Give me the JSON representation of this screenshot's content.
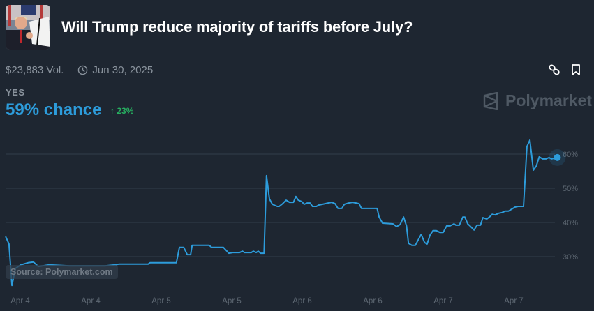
{
  "market": {
    "title": "Will Trump reduce majority of tariffs before July?",
    "thumbnail_icon": "market-photo",
    "volume": "$23,883 Vol.",
    "end_date": "Jun 30, 2025",
    "outcome_label": "YES",
    "chance": "59% chance",
    "change": "23%",
    "change_direction": "up"
  },
  "actions": {
    "link_icon": "link-icon",
    "bookmark_icon": "bookmark-icon"
  },
  "brand": {
    "name": "Polymarket"
  },
  "source": "Source: Polymarket.com",
  "colors": {
    "background": "#1e2631",
    "line": "#2d9cdb",
    "up": "#27ae60",
    "muted": "#8a939d"
  },
  "chart_data": {
    "type": "line",
    "title": "",
    "xlabel": "",
    "ylabel": "",
    "ylim": [
      22,
      66
    ],
    "grid": true,
    "y_ticks": [
      {
        "value": 60,
        "label": "60%"
      },
      {
        "value": 50,
        "label": "50%"
      },
      {
        "value": 40,
        "label": "40%"
      },
      {
        "value": 30,
        "label": "30%"
      }
    ],
    "x_ticks": [
      {
        "t": "2025-04-04T00:00",
        "label": "Apr 4"
      },
      {
        "t": "2025-04-04T12:00",
        "label": "Apr 4"
      },
      {
        "t": "2025-04-05T00:00",
        "label": "Apr 5"
      },
      {
        "t": "2025-04-05T12:00",
        "label": "Apr 5"
      },
      {
        "t": "2025-04-06T00:00",
        "label": "Apr 6"
      },
      {
        "t": "2025-04-06T12:00",
        "label": "Apr 6"
      },
      {
        "t": "2025-04-07T00:00",
        "label": "Apr 7"
      },
      {
        "t": "2025-04-07T12:00",
        "label": "Apr 7"
      }
    ],
    "series": [
      {
        "points": [
          [
            "2025-04-03T21:30",
            35.9
          ],
          [
            "2025-04-03T22:05",
            33.7
          ],
          [
            "2025-04-03T22:35",
            21.6
          ],
          [
            "2025-04-03T23:10",
            26.5
          ],
          [
            "2025-04-04T00:05",
            27.6
          ],
          [
            "2025-04-04T01:20",
            28.2
          ],
          [
            "2025-04-04T02:15",
            28.4
          ],
          [
            "2025-04-04T03:05",
            27.1
          ],
          [
            "2025-04-04T04:50",
            27.6
          ],
          [
            "2025-04-04T08:25",
            27.3
          ],
          [
            "2025-04-04T14:25",
            27.3
          ],
          [
            "2025-04-04T16:10",
            27.6
          ],
          [
            "2025-04-04T16:45",
            27.8
          ],
          [
            "2025-04-04T21:45",
            27.8
          ],
          [
            "2025-04-04T22:05",
            28.2
          ],
          [
            "2025-04-05T02:35",
            28.2
          ],
          [
            "2025-04-05T03:05",
            32.7
          ],
          [
            "2025-04-05T03:50",
            32.7
          ],
          [
            "2025-04-05T04:25",
            30.6
          ],
          [
            "2025-04-05T05:00",
            30.6
          ],
          [
            "2025-04-05T05:15",
            33.3
          ],
          [
            "2025-04-05T08:10",
            33.3
          ],
          [
            "2025-04-05T08:35",
            32.7
          ],
          [
            "2025-04-05T10:35",
            32.7
          ],
          [
            "2025-04-05T11:30",
            31.0
          ],
          [
            "2025-04-05T12:10",
            31.2
          ],
          [
            "2025-04-05T13:20",
            31.2
          ],
          [
            "2025-04-05T13:50",
            31.6
          ],
          [
            "2025-04-05T14:10",
            31.2
          ],
          [
            "2025-04-05T15:20",
            31.2
          ],
          [
            "2025-04-05T15:40",
            31.6
          ],
          [
            "2025-04-05T16:10",
            31.2
          ],
          [
            "2025-04-05T16:30",
            31.6
          ],
          [
            "2025-04-05T16:55",
            31.0
          ],
          [
            "2025-04-05T17:30",
            31.0
          ],
          [
            "2025-04-05T17:55",
            53.7
          ],
          [
            "2025-04-05T18:25",
            46.9
          ],
          [
            "2025-04-05T18:55",
            45.3
          ],
          [
            "2025-04-05T19:45",
            44.7
          ],
          [
            "2025-04-05T20:05",
            44.7
          ],
          [
            "2025-04-05T20:40",
            45.5
          ],
          [
            "2025-04-05T21:15",
            46.5
          ],
          [
            "2025-04-05T21:50",
            45.9
          ],
          [
            "2025-04-05T22:30",
            45.9
          ],
          [
            "2025-04-05T22:55",
            47.6
          ],
          [
            "2025-04-05T23:20",
            46.5
          ],
          [
            "2025-04-05T23:55",
            46.1
          ],
          [
            "2025-04-06T00:20",
            45.3
          ],
          [
            "2025-04-06T00:50",
            45.7
          ],
          [
            "2025-04-06T01:20",
            45.7
          ],
          [
            "2025-04-06T01:45",
            44.7
          ],
          [
            "2025-04-06T02:25",
            44.7
          ],
          [
            "2025-04-06T02:50",
            45.1
          ],
          [
            "2025-04-06T03:25",
            45.3
          ],
          [
            "2025-04-06T04:25",
            45.7
          ],
          [
            "2025-04-06T05:00",
            45.9
          ],
          [
            "2025-04-06T05:35",
            45.5
          ],
          [
            "2025-04-06T06:05",
            44.1
          ],
          [
            "2025-04-06T06:45",
            44.1
          ],
          [
            "2025-04-06T07:10",
            45.3
          ],
          [
            "2025-04-06T07:55",
            45.7
          ],
          [
            "2025-04-06T08:35",
            45.9
          ],
          [
            "2025-04-06T09:40",
            45.5
          ],
          [
            "2025-04-06T10:05",
            44.1
          ],
          [
            "2025-04-06T12:45",
            44.1
          ],
          [
            "2025-04-06T13:05",
            41.6
          ],
          [
            "2025-04-06T13:40",
            39.8
          ],
          [
            "2025-04-06T15:25",
            39.6
          ],
          [
            "2025-04-06T16:05",
            38.8
          ],
          [
            "2025-04-06T16:40",
            39.4
          ],
          [
            "2025-04-06T17:15",
            41.6
          ],
          [
            "2025-04-06T17:45",
            39.0
          ],
          [
            "2025-04-06T18:05",
            33.9
          ],
          [
            "2025-04-06T18:40",
            33.3
          ],
          [
            "2025-04-06T19:15",
            33.3
          ],
          [
            "2025-04-06T20:15",
            36.5
          ],
          [
            "2025-04-06T20:50",
            34.1
          ],
          [
            "2025-04-06T21:15",
            33.7
          ],
          [
            "2025-04-06T21:45",
            36.3
          ],
          [
            "2025-04-06T22:15",
            37.6
          ],
          [
            "2025-04-06T22:50",
            37.6
          ],
          [
            "2025-04-06T23:25",
            37.1
          ],
          [
            "2025-04-07T00:00",
            37.1
          ],
          [
            "2025-04-07T00:35",
            39.0
          ],
          [
            "2025-04-07T01:10",
            39.0
          ],
          [
            "2025-04-07T01:50",
            39.6
          ],
          [
            "2025-04-07T02:10",
            39.2
          ],
          [
            "2025-04-07T02:45",
            39.2
          ],
          [
            "2025-04-07T03:20",
            41.6
          ],
          [
            "2025-04-07T03:40",
            41.6
          ],
          [
            "2025-04-07T04:10",
            39.6
          ],
          [
            "2025-04-07T04:40",
            38.8
          ],
          [
            "2025-04-07T05:15",
            37.8
          ],
          [
            "2025-04-07T05:45",
            39.2
          ],
          [
            "2025-04-07T06:20",
            39.2
          ],
          [
            "2025-04-07T06:45",
            41.4
          ],
          [
            "2025-04-07T07:25",
            41.0
          ],
          [
            "2025-04-07T08:00",
            41.8
          ],
          [
            "2025-04-07T08:20",
            42.4
          ],
          [
            "2025-04-07T08:50",
            42.2
          ],
          [
            "2025-04-07T09:25",
            42.7
          ],
          [
            "2025-04-07T10:00",
            42.9
          ],
          [
            "2025-04-07T10:30",
            43.3
          ],
          [
            "2025-04-07T11:05",
            43.3
          ],
          [
            "2025-04-07T11:40",
            43.9
          ],
          [
            "2025-04-07T12:15",
            44.5
          ],
          [
            "2025-04-07T12:45",
            44.7
          ],
          [
            "2025-04-07T13:40",
            44.7
          ],
          [
            "2025-04-07T14:15",
            62.2
          ],
          [
            "2025-04-07T14:45",
            64.1
          ],
          [
            "2025-04-07T15:20",
            55.3
          ],
          [
            "2025-04-07T15:50",
            56.5
          ],
          [
            "2025-04-07T16:20",
            59.2
          ],
          [
            "2025-04-07T16:55",
            58.6
          ],
          [
            "2025-04-07T17:30",
            58.6
          ],
          [
            "2025-04-07T18:00",
            59.0
          ],
          [
            "2025-04-07T18:25",
            58.6
          ],
          [
            "2025-04-07T18:55",
            58.8
          ],
          [
            "2025-04-07T19:25",
            59.0
          ]
        ]
      }
    ]
  }
}
